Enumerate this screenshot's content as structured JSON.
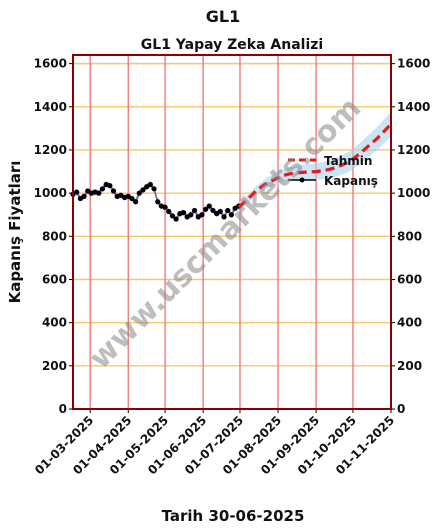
{
  "chart_data": {
    "type": "line",
    "title": "GL1",
    "subtitle": "GL1 Yapay Zeka Analizi",
    "xlabel": "Tarih 30-06-2025",
    "ylabel": "Kapanış Fiyatları",
    "ylim": [
      0,
      1640
    ],
    "yticks": [
      0,
      200,
      400,
      600,
      800,
      1000,
      1200,
      1400,
      1600
    ],
    "xlim": [
      "2025-02-15",
      "2025-11-01"
    ],
    "xticks": [
      "01-03-2025",
      "01-04-2025",
      "01-05-2025",
      "01-06-2025",
      "01-07-2025",
      "01-08-2025",
      "01-09-2025",
      "01-10-2025",
      "01-11-2025"
    ],
    "grid": true,
    "legend_position": "right",
    "watermark": "www.uscmarkets.com",
    "colors": {
      "frame": "#8b0000",
      "gridline_h": "#f5c76a",
      "gridline_v": "#ef7b7b",
      "actual": "#000000",
      "actual_band": "#b59ad6",
      "forecast": "#e01b1b",
      "forecast_band": "#a9d3ec"
    },
    "series": [
      {
        "name": "Kapanış",
        "x": [
          "2025-02-15",
          "2025-02-18",
          "2025-02-21",
          "2025-02-24",
          "2025-02-27",
          "2025-03-02",
          "2025-03-05",
          "2025-03-08",
          "2025-03-11",
          "2025-03-14",
          "2025-03-17",
          "2025-03-20",
          "2025-03-23",
          "2025-03-26",
          "2025-03-29",
          "2025-04-01",
          "2025-04-04",
          "2025-04-07",
          "2025-04-10",
          "2025-04-13",
          "2025-04-16",
          "2025-04-19",
          "2025-04-22",
          "2025-04-25",
          "2025-04-28",
          "2025-05-01",
          "2025-05-04",
          "2025-05-07",
          "2025-05-10",
          "2025-05-13",
          "2025-05-16",
          "2025-05-19",
          "2025-05-22",
          "2025-05-25",
          "2025-05-28",
          "2025-05-31",
          "2025-06-03",
          "2025-06-06",
          "2025-06-09",
          "2025-06-12",
          "2025-06-15",
          "2025-06-18",
          "2025-06-21",
          "2025-06-24",
          "2025-06-27",
          "2025-06-30"
        ],
        "values": [
          995,
          1005,
          975,
          985,
          1010,
          1000,
          1005,
          1000,
          1020,
          1040,
          1035,
          1010,
          985,
          990,
          980,
          985,
          975,
          960,
          1000,
          1015,
          1030,
          1040,
          1020,
          960,
          940,
          935,
          915,
          895,
          880,
          905,
          910,
          890,
          900,
          920,
          890,
          900,
          925,
          940,
          920,
          905,
          915,
          890,
          920,
          900,
          930,
          940
        ]
      },
      {
        "name": "Tahmin",
        "x": [
          "2025-06-30",
          "2025-07-07",
          "2025-07-14",
          "2025-07-21",
          "2025-07-28",
          "2025-08-04",
          "2025-08-11",
          "2025-08-18",
          "2025-08-25",
          "2025-09-01",
          "2025-09-08",
          "2025-09-15",
          "2025-09-22",
          "2025-09-29",
          "2025-10-06",
          "2025-10-13",
          "2025-10-20",
          "2025-10-27",
          "2025-11-01"
        ],
        "values": [
          935,
          970,
          1010,
          1040,
          1060,
          1080,
          1090,
          1095,
          1098,
          1100,
          1105,
          1115,
          1130,
          1150,
          1180,
          1215,
          1250,
          1290,
          1320
        ]
      }
    ]
  }
}
